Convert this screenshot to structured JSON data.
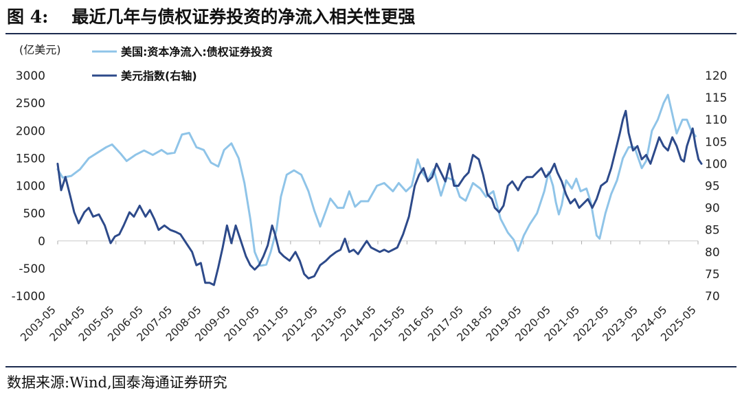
{
  "header": {
    "figure_number": "图 4:",
    "title": "最近几年与债权证券投资的净流入相关性更强"
  },
  "footer": {
    "source": "数据来源:Wind,国泰海通证券研究"
  },
  "colors": {
    "series_light": "#8fc4e8",
    "series_dark": "#2d4a8a",
    "rule": "#1b2a4e"
  },
  "chart_data": {
    "type": "line",
    "left_axis_unit": "(亿美元)",
    "y_left": {
      "min": -1000,
      "max": 3000,
      "ticks": [
        3000,
        2500,
        2000,
        1500,
        1000,
        500,
        0,
        -500,
        -1000
      ]
    },
    "y_right": {
      "min": 70,
      "max": 120,
      "ticks": [
        120,
        115,
        110,
        105,
        100,
        95,
        90,
        85,
        80,
        75,
        70
      ]
    },
    "x_range": [
      2003.333,
      2025.333
    ],
    "x_ticks": [
      "2003-05",
      "2004-05",
      "2005-05",
      "2006-05",
      "2007-05",
      "2008-05",
      "2009-05",
      "2010-05",
      "2011-05",
      "2012-05",
      "2013-05",
      "2014-05",
      "2015-05",
      "2016-05",
      "2017-05",
      "2018-05",
      "2019-05",
      "2020-05",
      "2021-05",
      "2022-05",
      "2023-05",
      "2024-05",
      "2025-05"
    ],
    "legend_position": "top-left",
    "grid": false,
    "series": [
      {
        "name": "美国:资本净流入:债权证券投资",
        "axis": "left",
        "color": "#8fc4e8",
        "points": [
          [
            2003.33,
            1300
          ],
          [
            2003.5,
            1150
          ],
          [
            2003.8,
            1180
          ],
          [
            2004.1,
            1300
          ],
          [
            2004.4,
            1500
          ],
          [
            2004.7,
            1600
          ],
          [
            2005.0,
            1700
          ],
          [
            2005.2,
            1750
          ],
          [
            2005.5,
            1580
          ],
          [
            2005.7,
            1450
          ],
          [
            2006.0,
            1560
          ],
          [
            2006.3,
            1640
          ],
          [
            2006.6,
            1560
          ],
          [
            2006.9,
            1650
          ],
          [
            2007.1,
            1580
          ],
          [
            2007.35,
            1600
          ],
          [
            2007.6,
            1930
          ],
          [
            2007.85,
            1960
          ],
          [
            2008.1,
            1700
          ],
          [
            2008.35,
            1650
          ],
          [
            2008.6,
            1420
          ],
          [
            2008.85,
            1350
          ],
          [
            2009.05,
            1650
          ],
          [
            2009.3,
            1770
          ],
          [
            2009.55,
            1500
          ],
          [
            2009.75,
            1050
          ],
          [
            2009.95,
            400
          ],
          [
            2010.1,
            -200
          ],
          [
            2010.3,
            -450
          ],
          [
            2010.5,
            -430
          ],
          [
            2010.65,
            -200
          ],
          [
            2010.85,
            200
          ],
          [
            2011.0,
            800
          ],
          [
            2011.2,
            1200
          ],
          [
            2011.45,
            1280
          ],
          [
            2011.7,
            1200
          ],
          [
            2011.95,
            900
          ],
          [
            2012.15,
            550
          ],
          [
            2012.35,
            260
          ],
          [
            2012.55,
            550
          ],
          [
            2012.7,
            770
          ],
          [
            2012.95,
            600
          ],
          [
            2013.15,
            600
          ],
          [
            2013.35,
            900
          ],
          [
            2013.55,
            620
          ],
          [
            2013.75,
            720
          ],
          [
            2014.0,
            720
          ],
          [
            2014.3,
            1000
          ],
          [
            2014.55,
            1050
          ],
          [
            2014.85,
            900
          ],
          [
            2015.05,
            1050
          ],
          [
            2015.3,
            900
          ],
          [
            2015.5,
            1000
          ],
          [
            2015.7,
            1480
          ],
          [
            2015.85,
            1250
          ],
          [
            2016.05,
            1100
          ],
          [
            2016.25,
            1300
          ],
          [
            2016.5,
            820
          ],
          [
            2016.7,
            1150
          ],
          [
            2016.95,
            1100
          ],
          [
            2017.15,
            800
          ],
          [
            2017.35,
            730
          ],
          [
            2017.6,
            1050
          ],
          [
            2017.85,
            950
          ],
          [
            2018.05,
            800
          ],
          [
            2018.3,
            900
          ],
          [
            2018.55,
            400
          ],
          [
            2018.8,
            150
          ],
          [
            2019.0,
            20
          ],
          [
            2019.15,
            -180
          ],
          [
            2019.35,
            100
          ],
          [
            2019.55,
            300
          ],
          [
            2019.8,
            500
          ],
          [
            2020.05,
            900
          ],
          [
            2020.2,
            1250
          ],
          [
            2020.35,
            1000
          ],
          [
            2020.45,
            700
          ],
          [
            2020.55,
            480
          ],
          [
            2020.65,
            650
          ],
          [
            2020.8,
            1100
          ],
          [
            2021.0,
            950
          ],
          [
            2021.15,
            1130
          ],
          [
            2021.3,
            900
          ],
          [
            2021.5,
            950
          ],
          [
            2021.65,
            700
          ],
          [
            2021.85,
            100
          ],
          [
            2021.95,
            40
          ],
          [
            2022.15,
            500
          ],
          [
            2022.35,
            850
          ],
          [
            2022.55,
            1100
          ],
          [
            2022.75,
            1500
          ],
          [
            2022.95,
            1700
          ],
          [
            2023.15,
            1700
          ],
          [
            2023.4,
            1320
          ],
          [
            2023.55,
            1450
          ],
          [
            2023.75,
            2000
          ],
          [
            2023.95,
            2200
          ],
          [
            2024.15,
            2500
          ],
          [
            2024.3,
            2650
          ],
          [
            2024.45,
            2300
          ],
          [
            2024.6,
            1950
          ],
          [
            2024.8,
            2200
          ],
          [
            2024.95,
            2200
          ],
          [
            2025.1,
            2000
          ],
          [
            2025.25,
            1900
          ]
        ]
      },
      {
        "name": "美元指数(右轴)",
        "axis": "right",
        "color": "#2d4a8a",
        "points": [
          [
            2003.33,
            100
          ],
          [
            2003.45,
            94
          ],
          [
            2003.6,
            97
          ],
          [
            2003.75,
            93
          ],
          [
            2003.9,
            89
          ],
          [
            2004.05,
            86.5
          ],
          [
            2004.25,
            89
          ],
          [
            2004.4,
            90
          ],
          [
            2004.55,
            88
          ],
          [
            2004.75,
            88.5
          ],
          [
            2004.95,
            86
          ],
          [
            2005.05,
            84
          ],
          [
            2005.15,
            82
          ],
          [
            2005.3,
            83.5
          ],
          [
            2005.45,
            84
          ],
          [
            2005.6,
            86
          ],
          [
            2005.8,
            89
          ],
          [
            2005.95,
            88
          ],
          [
            2006.15,
            90.5
          ],
          [
            2006.35,
            88
          ],
          [
            2006.5,
            89.5
          ],
          [
            2006.65,
            87.5
          ],
          [
            2006.8,
            85
          ],
          [
            2007.0,
            86
          ],
          [
            2007.2,
            85
          ],
          [
            2007.4,
            84.5
          ],
          [
            2007.55,
            84
          ],
          [
            2007.75,
            82
          ],
          [
            2007.95,
            80
          ],
          [
            2008.1,
            77
          ],
          [
            2008.25,
            77.5
          ],
          [
            2008.4,
            73
          ],
          [
            2008.55,
            73
          ],
          [
            2008.7,
            72.5
          ],
          [
            2008.85,
            76.5
          ],
          [
            2009.0,
            81
          ],
          [
            2009.15,
            86
          ],
          [
            2009.3,
            82
          ],
          [
            2009.45,
            86
          ],
          [
            2009.6,
            83
          ],
          [
            2009.8,
            79
          ],
          [
            2009.95,
            77
          ],
          [
            2010.1,
            76
          ],
          [
            2010.25,
            77
          ],
          [
            2010.4,
            79
          ],
          [
            2010.55,
            81.5
          ],
          [
            2010.7,
            86
          ],
          [
            2010.8,
            84
          ],
          [
            2010.95,
            80
          ],
          [
            2011.1,
            79
          ],
          [
            2011.3,
            78
          ],
          [
            2011.5,
            80
          ],
          [
            2011.65,
            78
          ],
          [
            2011.8,
            75
          ],
          [
            2011.95,
            74
          ],
          [
            2012.15,
            74.5
          ],
          [
            2012.35,
            77
          ],
          [
            2012.55,
            78
          ],
          [
            2012.7,
            79
          ],
          [
            2012.9,
            80
          ],
          [
            2013.05,
            80.5
          ],
          [
            2013.2,
            83
          ],
          [
            2013.35,
            80
          ],
          [
            2013.5,
            80.5
          ],
          [
            2013.65,
            79.5
          ],
          [
            2013.8,
            81
          ],
          [
            2013.95,
            82.5
          ],
          [
            2014.1,
            81
          ],
          [
            2014.25,
            80.5
          ],
          [
            2014.4,
            80
          ],
          [
            2014.55,
            80.5
          ],
          [
            2014.7,
            80
          ],
          [
            2014.85,
            80.5
          ],
          [
            2015.0,
            81
          ],
          [
            2015.2,
            84
          ],
          [
            2015.4,
            88
          ],
          [
            2015.6,
            95
          ],
          [
            2015.75,
            97.5
          ],
          [
            2015.9,
            99
          ],
          [
            2016.05,
            96
          ],
          [
            2016.2,
            97
          ],
          [
            2016.35,
            100
          ],
          [
            2016.5,
            98
          ],
          [
            2016.65,
            96
          ],
          [
            2016.8,
            100
          ],
          [
            2016.95,
            95
          ],
          [
            2017.1,
            95
          ],
          [
            2017.3,
            97
          ],
          [
            2017.45,
            98
          ],
          [
            2017.6,
            102
          ],
          [
            2017.8,
            101
          ],
          [
            2017.95,
            97.5
          ],
          [
            2018.1,
            93
          ],
          [
            2018.25,
            92
          ],
          [
            2018.35,
            90
          ],
          [
            2018.5,
            89
          ],
          [
            2018.65,
            90.5
          ],
          [
            2018.8,
            95
          ],
          [
            2018.95,
            96
          ],
          [
            2019.15,
            94
          ],
          [
            2019.3,
            96
          ],
          [
            2019.45,
            97
          ],
          [
            2019.65,
            97
          ],
          [
            2019.8,
            98
          ],
          [
            2019.95,
            99
          ],
          [
            2020.1,
            97
          ],
          [
            2020.25,
            98
          ],
          [
            2020.4,
            100
          ],
          [
            2020.5,
            98
          ],
          [
            2020.65,
            96
          ],
          [
            2020.8,
            93
          ],
          [
            2020.95,
            91
          ],
          [
            2021.1,
            92
          ],
          [
            2021.25,
            90
          ],
          [
            2021.4,
            91
          ],
          [
            2021.55,
            92
          ],
          [
            2021.7,
            90
          ],
          [
            2021.85,
            92
          ],
          [
            2022.0,
            95
          ],
          [
            2022.2,
            96
          ],
          [
            2022.35,
            99
          ],
          [
            2022.5,
            103
          ],
          [
            2022.65,
            107
          ],
          [
            2022.75,
            110
          ],
          [
            2022.85,
            112
          ],
          [
            2022.95,
            107
          ],
          [
            2023.1,
            103
          ],
          [
            2023.25,
            104
          ],
          [
            2023.4,
            101
          ],
          [
            2023.55,
            102
          ],
          [
            2023.7,
            100
          ],
          [
            2023.85,
            103
          ],
          [
            2024.0,
            106
          ],
          [
            2024.15,
            104
          ],
          [
            2024.3,
            103
          ],
          [
            2024.45,
            106
          ],
          [
            2024.6,
            104
          ],
          [
            2024.75,
            101
          ],
          [
            2024.85,
            100.5
          ],
          [
            2024.95,
            104
          ],
          [
            2025.05,
            106
          ],
          [
            2025.15,
            108
          ],
          [
            2025.25,
            104
          ],
          [
            2025.35,
            101
          ],
          [
            2025.45,
            100
          ]
        ]
      }
    ]
  }
}
